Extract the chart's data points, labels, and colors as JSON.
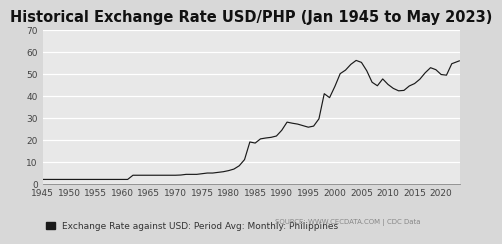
{
  "title": "Historical Exchange Rate USD/PHP (Jan 1945 to May 2023)",
  "ylim": [
    0,
    70
  ],
  "yticks": [
    0,
    10,
    20,
    30,
    40,
    50,
    60,
    70
  ],
  "xlim": [
    1945,
    2023.5
  ],
  "xticks": [
    1945,
    1950,
    1955,
    1960,
    1965,
    1970,
    1975,
    1980,
    1985,
    1990,
    1995,
    2000,
    2005,
    2010,
    2015,
    2020
  ],
  "legend_label": "Exchange Rate against USD: Period Avg: Monthly: Philippines",
  "source_text": "SOURCE: WWW.CECDATA.COM | CDC Data",
  "background_color": "#d8d8d8",
  "plot_bg_color": "#e8e8e8",
  "line_color": "#1a1a1a",
  "title_fontsize": 10.5,
  "legend_fontsize": 6.5,
  "tick_fontsize": 6.5,
  "source_fontsize": 5.0,
  "data_x": [
    1945,
    1946,
    1947,
    1948,
    1949,
    1950,
    1951,
    1952,
    1953,
    1954,
    1955,
    1956,
    1957,
    1958,
    1959,
    1960,
    1961,
    1962,
    1963,
    1964,
    1965,
    1966,
    1967,
    1968,
    1969,
    1970,
    1971,
    1972,
    1973,
    1974,
    1975,
    1976,
    1977,
    1978,
    1979,
    1980,
    1981,
    1982,
    1983,
    1984,
    1985,
    1986,
    1987,
    1988,
    1989,
    1990,
    1991,
    1992,
    1993,
    1994,
    1995,
    1996,
    1997,
    1998,
    1999,
    2000,
    2001,
    2002,
    2003,
    2004,
    2005,
    2006,
    2007,
    2008,
    2009,
    2010,
    2011,
    2012,
    2013,
    2014,
    2015,
    2016,
    2017,
    2018,
    2019,
    2020,
    2021,
    2022,
    2023.42
  ],
  "data_y": [
    2.0,
    2.0,
    2.0,
    2.0,
    2.0,
    2.0,
    2.0,
    2.0,
    2.0,
    2.0,
    2.0,
    2.0,
    2.0,
    2.0,
    2.0,
    2.0,
    2.0,
    3.9,
    3.9,
    3.9,
    3.9,
    3.9,
    3.9,
    3.9,
    3.9,
    3.9,
    4.0,
    4.3,
    4.3,
    4.3,
    4.6,
    4.9,
    4.9,
    5.2,
    5.5,
    6.0,
    6.7,
    8.2,
    11.0,
    19.0,
    18.5,
    20.4,
    20.8,
    21.1,
    21.7,
    24.3,
    28.0,
    27.5,
    27.1,
    26.4,
    25.7,
    26.2,
    29.5,
    40.9,
    39.1,
    44.2,
    50.0,
    51.6,
    54.2,
    56.0,
    55.1,
    51.3,
    46.1,
    44.5,
    47.6,
    45.1,
    43.3,
    42.2,
    42.4,
    44.4,
    45.5,
    47.5,
    50.4,
    52.7,
    51.8,
    49.6,
    49.3,
    54.5,
    55.8
  ]
}
